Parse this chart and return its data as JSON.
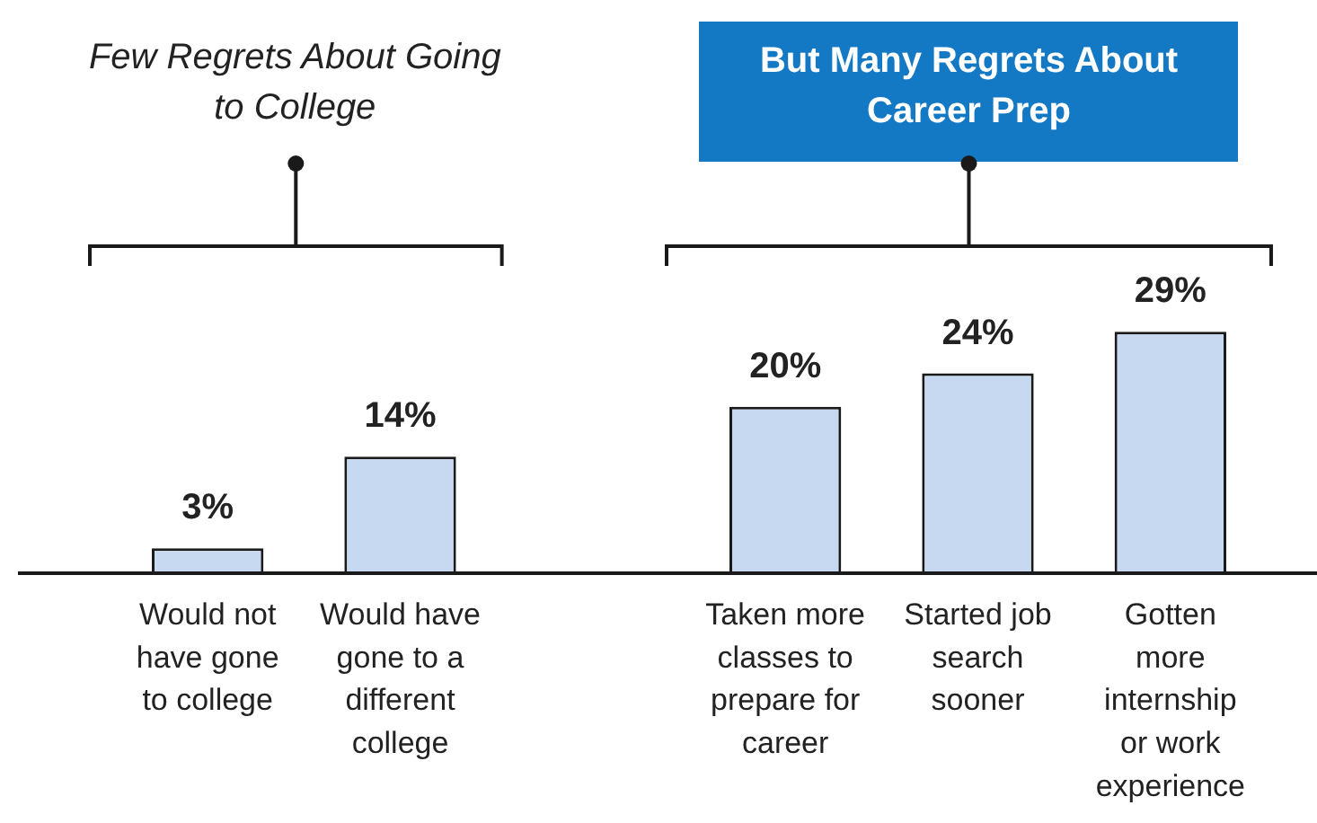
{
  "chart_data": {
    "type": "bar",
    "categories": [
      "Would not have gone to college",
      "Would have gone to a different college",
      null,
      "Taken more classes to prepare for career",
      "Started job search sooner",
      "Gotten more internship or work experience"
    ],
    "values": [
      3,
      14,
      null,
      20,
      24,
      29
    ],
    "value_labels": [
      "3%",
      "14%",
      null,
      "20%",
      "24%",
      "29%"
    ],
    "color": "#c6d9f0",
    "tick_labels": "x",
    "annotations": [
      "Few Regrets About Going to College",
      "But Many Regrets About Career Prep"
    ],
    "grid": false,
    "legend": false
  }
}
